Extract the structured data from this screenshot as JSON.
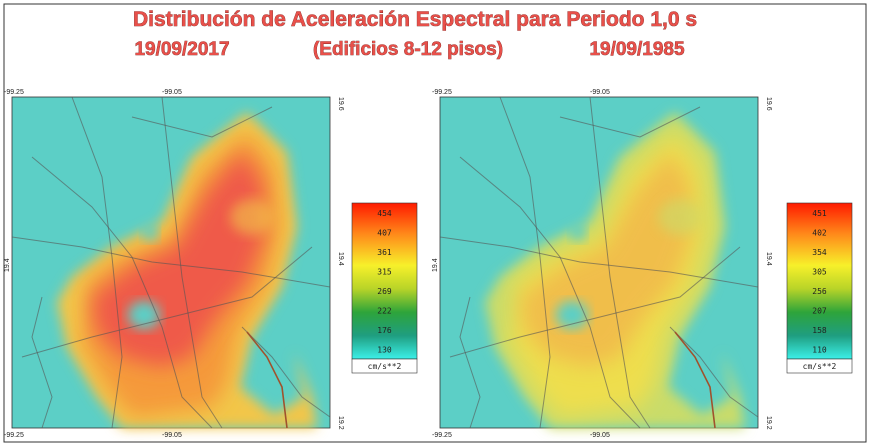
{
  "title": "Distribución de Aceleración Espectral para Periodo 1,0 s",
  "subtitle": {
    "left": "19/09/2017",
    "center": "(Edificios 8-12 pisos)",
    "right": "19/09/1985"
  },
  "maps": [
    {
      "coords": {
        "top_left": "-99.25",
        "top_mid": "-99.05",
        "top_right": "19.6",
        "left": "19.4",
        "right": "19.4",
        "bottom_left": "-99.25",
        "bottom_mid": "-99.05",
        "bottom_right": "19.2"
      },
      "scale": {
        "labels": [
          454,
          407,
          361,
          315,
          269,
          222,
          176,
          130
        ],
        "unit": "cm/s**2"
      }
    },
    {
      "coords": {
        "top_left": "-99.25",
        "top_mid": "-99.05",
        "top_right": "19.6",
        "left": "19.4",
        "right": "19.4",
        "bottom_left": "-99.25",
        "bottom_mid": "-99.05",
        "bottom_right": "19.2"
      },
      "scale": {
        "labels": [
          451,
          402,
          354,
          305,
          256,
          207,
          158,
          110
        ],
        "unit": "cm/s**2"
      }
    }
  ]
}
